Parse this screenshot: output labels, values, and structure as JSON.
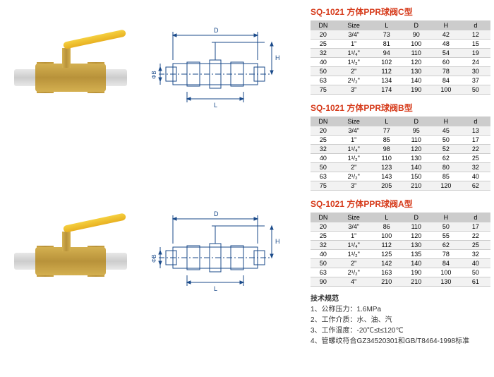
{
  "titles": {
    "t1": "SQ-1021  方体PPR球阀C型",
    "t2": "SQ-1021  方体PPR球阀B型",
    "t3": "SQ-1021  方体PPR球阀A型"
  },
  "headers": {
    "dn": "DN",
    "size": "Size",
    "l": "L",
    "d_up": "D",
    "h": "H",
    "d_low": "d"
  },
  "tables": {
    "c": [
      {
        "dn": "20",
        "size": "3/4\"",
        "l": "73",
        "d": "90",
        "h": "42",
        "dd": "12"
      },
      {
        "dn": "25",
        "size": "1\"",
        "l": "81",
        "d": "100",
        "h": "48",
        "dd": "15"
      },
      {
        "dn": "32",
        "size": "1¹/₄\"",
        "l": "94",
        "d": "110",
        "h": "54",
        "dd": "19"
      },
      {
        "dn": "40",
        "size": "1¹/₂\"",
        "l": "102",
        "d": "120",
        "h": "60",
        "dd": "24"
      },
      {
        "dn": "50",
        "size": "2\"",
        "l": "112",
        "d": "130",
        "h": "78",
        "dd": "30"
      },
      {
        "dn": "63",
        "size": "2¹/₂\"",
        "l": "134",
        "d": "140",
        "h": "84",
        "dd": "37"
      },
      {
        "dn": "75",
        "size": "3\"",
        "l": "174",
        "d": "190",
        "h": "100",
        "dd": "50"
      }
    ],
    "b": [
      {
        "dn": "20",
        "size": "3/4\"",
        "l": "77",
        "d": "95",
        "h": "45",
        "dd": "13"
      },
      {
        "dn": "25",
        "size": "1\"",
        "l": "85",
        "d": "110",
        "h": "50",
        "dd": "17"
      },
      {
        "dn": "32",
        "size": "1¹/₄\"",
        "l": "98",
        "d": "120",
        "h": "52",
        "dd": "22"
      },
      {
        "dn": "40",
        "size": "1¹/₂\"",
        "l": "110",
        "d": "130",
        "h": "62",
        "dd": "25"
      },
      {
        "dn": "50",
        "size": "2\"",
        "l": "123",
        "d": "140",
        "h": "80",
        "dd": "32"
      },
      {
        "dn": "63",
        "size": "2¹/₂\"",
        "l": "143",
        "d": "150",
        "h": "85",
        "dd": "40"
      },
      {
        "dn": "75",
        "size": "3\"",
        "l": "205",
        "d": "210",
        "h": "120",
        "dd": "62"
      }
    ],
    "a": [
      {
        "dn": "20",
        "size": "3/4\"",
        "l": "86",
        "d": "110",
        "h": "50",
        "dd": "17"
      },
      {
        "dn": "25",
        "size": "1\"",
        "l": "100",
        "d": "120",
        "h": "55",
        "dd": "22"
      },
      {
        "dn": "32",
        "size": "1¹/₄\"",
        "l": "112",
        "d": "130",
        "h": "62",
        "dd": "25"
      },
      {
        "dn": "40",
        "size": "1¹/₂\"",
        "l": "125",
        "d": "135",
        "h": "78",
        "dd": "32"
      },
      {
        "dn": "50",
        "size": "2\"",
        "l": "142",
        "d": "140",
        "h": "84",
        "dd": "40"
      },
      {
        "dn": "63",
        "size": "2¹/₂\"",
        "l": "163",
        "d": "190",
        "h": "100",
        "dd": "50"
      },
      {
        "dn": "90",
        "size": "4\"",
        "l": "210",
        "d": "210",
        "h": "130",
        "dd": "61"
      }
    ]
  },
  "tech": {
    "title": "技术规范",
    "line1": "1、公称压力：1.6MPa",
    "line2": "2、工作介质：水、油、汽",
    "line3": "3、工作温度：-20℃≤t≤120℃",
    "line4": "4、管螺纹符合GZ34520301和GB/T8464-1998标准"
  },
  "dim_labels": {
    "D": "D",
    "H": "H",
    "L": "L",
    "phiB": "ΦB"
  },
  "colors": {
    "title": "#d63a1a",
    "header_bg": "#cccccc",
    "alt_row": "#f2f2f2",
    "border": "#cccccc"
  }
}
